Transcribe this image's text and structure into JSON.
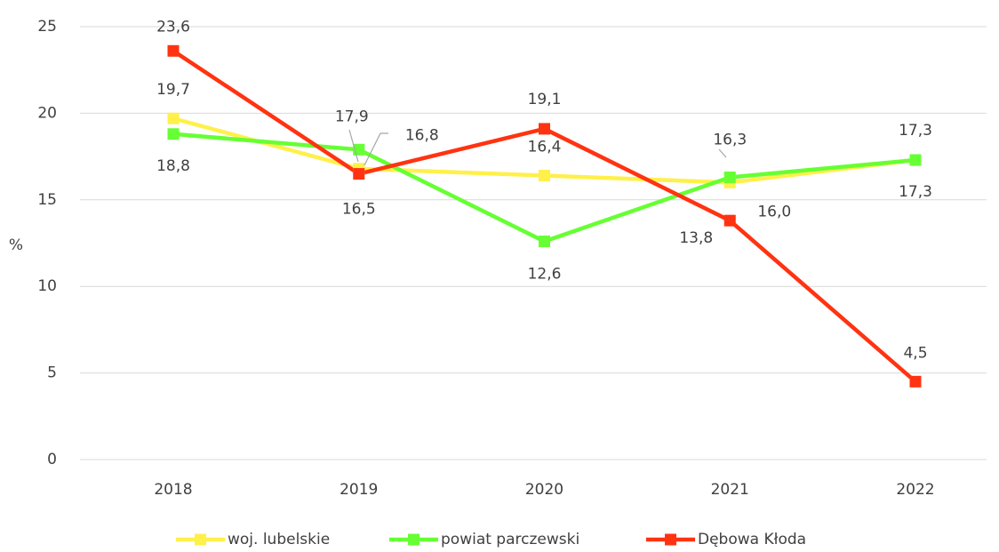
{
  "chart_data": {
    "type": "line",
    "categories": [
      "2018",
      "2019",
      "2020",
      "2021",
      "2022"
    ],
    "series": [
      {
        "name": "woj. lubelskie",
        "color": "#fff04a",
        "values": [
          19.7,
          16.8,
          16.4,
          16.0,
          17.3
        ],
        "value_labels": [
          "19,7",
          "16,8",
          "16,4",
          "16,0",
          "17,3"
        ]
      },
      {
        "name": "powiat parczewski",
        "color": "#66ff33",
        "values": [
          18.8,
          17.9,
          12.6,
          16.3,
          17.3
        ],
        "value_labels": [
          "18,8",
          "17,9",
          "12,6",
          "16,3",
          "17,3"
        ]
      },
      {
        "name": "Dębowa Kłoda",
        "color": "#ff3311",
        "values": [
          23.6,
          16.5,
          19.1,
          13.8,
          4.5
        ],
        "value_labels": [
          "23,6",
          "16,5",
          "19,1",
          "13,8",
          "4,5"
        ]
      }
    ],
    "ylabel": "%",
    "ylim": [
      0,
      25
    ],
    "yticks": [
      0,
      5,
      10,
      15,
      20,
      25
    ],
    "grid": true,
    "legend": "bottom"
  }
}
